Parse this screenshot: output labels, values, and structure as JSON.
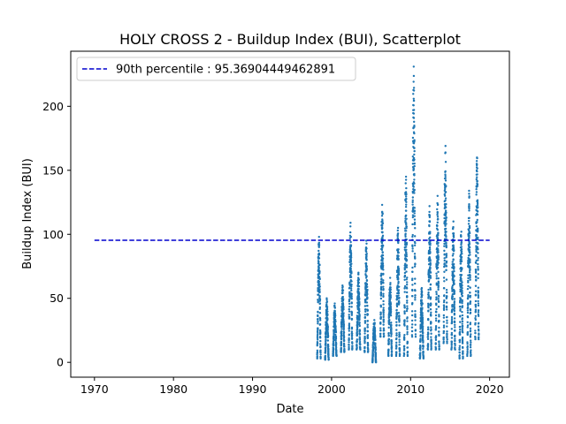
{
  "chart_data": {
    "type": "scatter",
    "title": "HOLY CROSS 2 - Buildup Index (BUI), Scatterplot",
    "xlabel": "Date",
    "ylabel": "Buildup Index (BUI)",
    "xlim": [
      1967.0,
      2022.5
    ],
    "ylim": [
      -11.6,
      243.0
    ],
    "x_ticks": [
      1970,
      1980,
      1990,
      2000,
      2010,
      2020
    ],
    "x_tick_labels": [
      "1970",
      "1980",
      "1990",
      "2000",
      "2010",
      "2020"
    ],
    "y_ticks": [
      0,
      50,
      100,
      150,
      200
    ],
    "y_tick_labels": [
      "0",
      "50",
      "100",
      "150",
      "200"
    ],
    "grid": false,
    "legend": {
      "placement": "top-left",
      "entries": [
        "90th percentile : 95.36904449462891"
      ]
    },
    "colors": {
      "points": "#1f77b4",
      "reference_line": "#0000cd"
    },
    "series": [
      {
        "values": [
          {
            "x": 1998.4,
            "y_min": 3,
            "y_max": 98
          },
          {
            "x": 1999.4,
            "y_min": 2,
            "y_max": 50
          },
          {
            "x": 2000.4,
            "y_min": 5,
            "y_max": 46
          },
          {
            "x": 2001.4,
            "y_min": 8,
            "y_max": 60
          },
          {
            "x": 2002.4,
            "y_min": 10,
            "y_max": 109
          },
          {
            "x": 2003.4,
            "y_min": 10,
            "y_max": 70
          },
          {
            "x": 2004.4,
            "y_min": 8,
            "y_max": 95
          },
          {
            "x": 2005.4,
            "y_min": 0,
            "y_max": 33
          },
          {
            "x": 2006.4,
            "y_min": 20,
            "y_max": 123
          },
          {
            "x": 2007.4,
            "y_min": 5,
            "y_max": 66
          },
          {
            "x": 2008.4,
            "y_min": 5,
            "y_max": 105
          },
          {
            "x": 2009.4,
            "y_min": 5,
            "y_max": 145
          },
          {
            "x": 2010.4,
            "y_min": 20,
            "y_max": 231
          },
          {
            "x": 2011.4,
            "y_min": 3,
            "y_max": 58
          },
          {
            "x": 2012.4,
            "y_min": 10,
            "y_max": 122
          },
          {
            "x": 2013.4,
            "y_min": 10,
            "y_max": 130
          },
          {
            "x": 2014.4,
            "y_min": 15,
            "y_max": 169
          },
          {
            "x": 2015.4,
            "y_min": 10,
            "y_max": 110
          },
          {
            "x": 2016.4,
            "y_min": 3,
            "y_max": 102
          },
          {
            "x": 2017.4,
            "y_min": 5,
            "y_max": 134
          },
          {
            "x": 2018.4,
            "y_min": 18,
            "y_max": 160
          }
        ]
      }
    ],
    "reference_line": {
      "label": "90th percentile : 95.36904449462891",
      "y": 95.36904449462891,
      "x_range": [
        1970,
        2020
      ]
    }
  }
}
